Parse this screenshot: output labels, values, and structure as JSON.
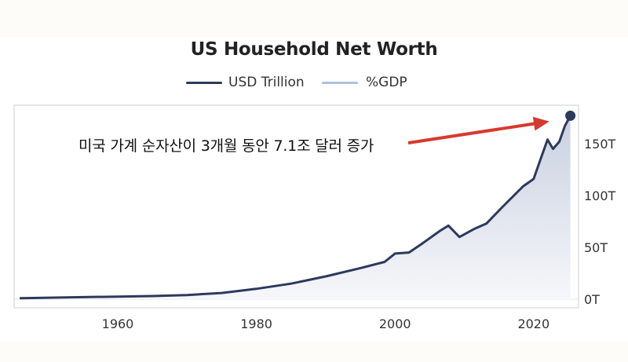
{
  "chart_data": {
    "type": "area",
    "title": "US Household Net Worth",
    "xlabel": "",
    "ylabel": "",
    "xlim": [
      1945,
      2026
    ],
    "ylim": [
      0,
      180
    ],
    "x_ticks": [
      1960,
      1980,
      2000,
      2020
    ],
    "y_ticks": [
      0,
      50,
      100,
      150
    ],
    "y_tick_labels": [
      "0T",
      "50T",
      "100T",
      "150T"
    ],
    "y_axis_side": "right",
    "grid": false,
    "legend": {
      "placement": "top-center",
      "entries": [
        {
          "name": "USD Trillion",
          "color": "#2d3a5c"
        },
        {
          "name": "%GDP",
          "color": "#a9c3df"
        }
      ]
    },
    "series": [
      {
        "name": "USD Trillion",
        "color": "#2d3a5c",
        "x": [
          1946,
          1955,
          1960,
          1965,
          1970,
          1975,
          1980,
          1985,
          1990,
          1995,
          1998.5,
          2000,
          2002,
          2004,
          2006.5,
          2007.7,
          2009.3,
          2011.5,
          2013.2,
          2015.5,
          2018.5,
          2020,
          2021,
          2022,
          2022.8,
          2023.7,
          2024.5,
          2025.3
        ],
        "values": [
          1,
          2,
          2.5,
          3,
          4,
          6,
          10,
          15,
          22,
          30,
          36,
          44,
          45,
          54,
          66,
          71,
          60,
          68,
          73,
          89,
          109,
          116,
          135,
          154,
          145,
          152,
          167,
          177
        ]
      }
    ],
    "annotations": [
      {
        "text": "미국 가계 순자산이 3개월 동안 7.1조 달러 증가",
        "arrow_color": "#d63a2f",
        "points_to": "latest data point"
      }
    ],
    "end_marker": {
      "x": 2025.3,
      "value": 177
    }
  },
  "colors": {
    "line": "#2d3a5c",
    "fill_top": "#c9d0e0",
    "fill_bottom": "#f6f7fa",
    "frame": "#dddddd",
    "arrow": "#d63a2f",
    "text": "#333333"
  }
}
